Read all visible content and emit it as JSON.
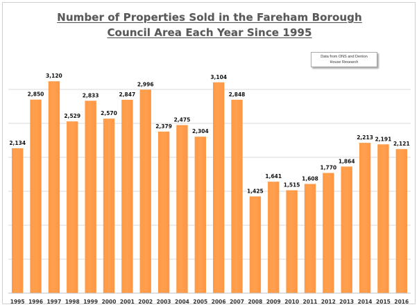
{
  "chart_data": {
    "type": "bar",
    "title_line1": "Number of Properties Sold in the Fareham Borough",
    "title_line2": "Council Area Each Year Since 1995",
    "source_line1": "Data from ONS and Denton",
    "source_line2": "House Research",
    "bar_color": "#FFA050",
    "grid_color": "#d9d9d9",
    "ylim": [
      0,
      3500
    ],
    "grid_step": 500,
    "grid": true,
    "xlabel": "",
    "ylabel": "",
    "categories": [
      "1995",
      "1996",
      "1997",
      "1998",
      "1999",
      "2000",
      "2001",
      "2002",
      "2003",
      "2004",
      "2005",
      "2006",
      "2007",
      "2008",
      "2009",
      "2010",
      "2011",
      "2012",
      "2013",
      "2014",
      "2015",
      "2016"
    ],
    "values": [
      2134,
      2850,
      3120,
      2529,
      2833,
      2570,
      2847,
      2996,
      2379,
      2475,
      2304,
      3104,
      2848,
      1425,
      1641,
      1515,
      1608,
      1770,
      1864,
      2213,
      2191,
      2121
    ],
    "value_labels": [
      "2,134",
      "2,850",
      "3,120",
      "2,529",
      "2,833",
      "2,570",
      "2,847",
      "2,996",
      "2,379",
      "2,475",
      "2,304",
      "3,104",
      "2,848",
      "1,425",
      "1,641",
      "1,515",
      "1,608",
      "1,770",
      "1,864",
      "2,213",
      "2,191",
      "2,121"
    ]
  }
}
